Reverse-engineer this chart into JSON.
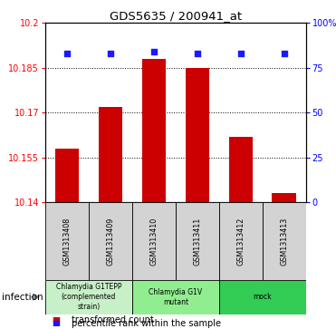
{
  "title": "GDS5635 / 200941_at",
  "samples": [
    "GSM1313408",
    "GSM1313409",
    "GSM1313410",
    "GSM1313411",
    "GSM1313412",
    "GSM1313413"
  ],
  "bar_values": [
    10.158,
    10.172,
    10.188,
    10.185,
    10.162,
    10.143
  ],
  "percentile_values": [
    83,
    83,
    84,
    83,
    83,
    83
  ],
  "bar_color": "#cc0000",
  "dot_color": "#1a1aff",
  "ylim_left": [
    10.14,
    10.2
  ],
  "ylim_right": [
    0,
    100
  ],
  "yticks_left": [
    10.14,
    10.155,
    10.17,
    10.185,
    10.2
  ],
  "ytick_labels_left": [
    "10.14",
    "10.155",
    "10.17",
    "10.185",
    "10.2"
  ],
  "yticks_right": [
    0,
    25,
    50,
    75,
    100
  ],
  "ytick_labels_right": [
    "0",
    "25",
    "50",
    "75",
    "100%"
  ],
  "groups": [
    {
      "label": "Chlamydia G1TEPP\n(complemented\nstrain)",
      "samples_idx": [
        0,
        1
      ],
      "color": "#c8f0c8"
    },
    {
      "label": "Chlamydia G1V\nmutant",
      "samples_idx": [
        2,
        3
      ],
      "color": "#90ee90"
    },
    {
      "label": "mock",
      "samples_idx": [
        4,
        5
      ],
      "color": "#33cc55"
    }
  ],
  "factor_label": "infection",
  "legend_items": [
    {
      "label": "transformed count",
      "color": "#cc0000"
    },
    {
      "label": "percentile rank within the sample",
      "color": "#1a1aff"
    }
  ],
  "bar_width": 0.55,
  "base_value": 10.14,
  "sample_box_color": "#d3d3d3",
  "grid_yticks": [
    10.155,
    10.17,
    10.185
  ]
}
